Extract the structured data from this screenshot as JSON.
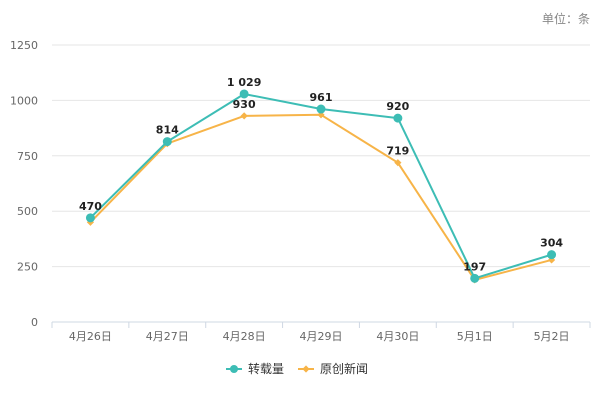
{
  "unit_label": "单位：条",
  "chart_data": {
    "type": "line",
    "categories": [
      "4月26日",
      "4月27日",
      "4月28日",
      "4月29日",
      "4月30日",
      "5月1日",
      "5月2日"
    ],
    "ylim": [
      0,
      1250
    ],
    "yticks": [
      0,
      250,
      500,
      750,
      1000,
      1250
    ],
    "grid": true,
    "legend_position": "bottom-center",
    "series": [
      {
        "name": "转载量",
        "color": "#3dbdb5",
        "marker": "circle",
        "values": [
          470,
          814,
          1029,
          961,
          920,
          197,
          304
        ],
        "labels": [
          "470",
          "814",
          "1 029",
          "961",
          "920",
          "197",
          "304"
        ]
      },
      {
        "name": "原创新闻",
        "color": "#f7b448",
        "marker": "diamond",
        "values": [
          450,
          805,
          930,
          935,
          719,
          190,
          280
        ],
        "labels": [
          "",
          "",
          "930",
          "",
          "719",
          "",
          ""
        ]
      }
    ]
  }
}
